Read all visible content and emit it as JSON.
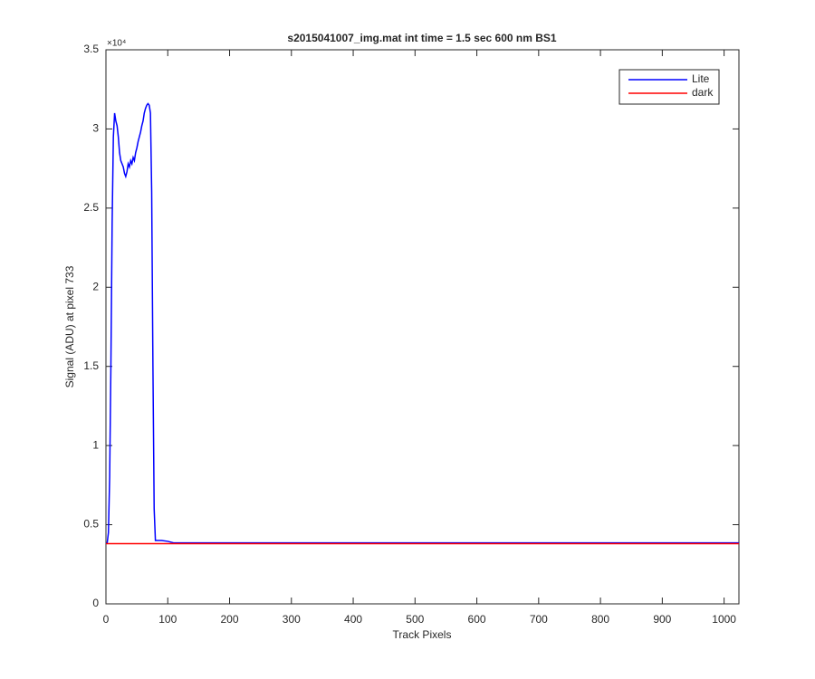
{
  "chart_data": {
    "type": "line",
    "title": "s2015041007_img.mat int time = 1.5 sec  600 nm BS1",
    "xlabel": "Track Pixels",
    "ylabel": "Signal (ADU) at pixel 733",
    "y_multiplier": "×10⁴",
    "x": [
      0,
      2,
      4,
      6,
      8,
      10,
      12,
      14,
      16,
      18,
      20,
      22,
      24,
      26,
      28,
      30,
      32,
      34,
      36,
      38,
      40,
      42,
      44,
      46,
      48,
      50,
      52,
      54,
      56,
      58,
      60,
      62,
      64,
      66,
      68,
      70,
      72,
      74,
      76,
      78,
      80,
      85,
      90,
      100,
      110,
      150,
      200,
      300,
      400,
      500,
      600,
      700,
      800,
      900,
      1000,
      1024
    ],
    "series": [
      {
        "name": "Lite",
        "color": "#0000ff",
        "values": [
          3800,
          3850,
          4500,
          8000,
          15000,
          24000,
          29500,
          31000,
          30500,
          30200,
          29500,
          28500,
          28000,
          27800,
          27600,
          27200,
          27000,
          27300,
          27800,
          27600,
          28000,
          27800,
          28200,
          28000,
          28500,
          28800,
          29200,
          29500,
          29800,
          30200,
          30500,
          31000,
          31300,
          31500,
          31600,
          31500,
          31000,
          26000,
          15000,
          6000,
          4000,
          4000,
          4000,
          3950,
          3850,
          3850,
          3850,
          3850,
          3850,
          3850,
          3850,
          3850,
          3850,
          3850,
          3850,
          3850
        ]
      },
      {
        "name": "dark",
        "color": "#ff0000",
        "values": [
          3800,
          3800,
          3800,
          3800,
          3800,
          3800,
          3800,
          3800,
          3800,
          3800,
          3800,
          3800,
          3800,
          3800,
          3800,
          3800,
          3800,
          3800,
          3800,
          3800,
          3800,
          3800,
          3800,
          3800,
          3800,
          3800,
          3800,
          3800,
          3800,
          3800,
          3800,
          3800,
          3800,
          3800,
          3800,
          3800,
          3800,
          3800,
          3800,
          3800,
          3800,
          3800,
          3800,
          3800,
          3800,
          3800,
          3800,
          3800,
          3800,
          3800,
          3800,
          3800,
          3800,
          3800,
          3800,
          3800
        ]
      }
    ],
    "xlim": [
      0,
      1024
    ],
    "xticks": [
      0,
      100,
      200,
      300,
      400,
      500,
      600,
      700,
      800,
      900,
      1000
    ],
    "ylim": [
      0,
      35000
    ],
    "yticks": [
      0,
      {
        "value": 5000,
        "label": "0.5"
      },
      {
        "value": 10000,
        "label": "1"
      },
      {
        "value": 15000,
        "label": "1.5"
      },
      {
        "value": 20000,
        "label": "2"
      },
      {
        "value": 25000,
        "label": "2.5"
      },
      {
        "value": 30000,
        "label": "3"
      },
      {
        "value": 35000,
        "label": "3.5"
      }
    ],
    "legend": "top-right",
    "grid": false
  }
}
